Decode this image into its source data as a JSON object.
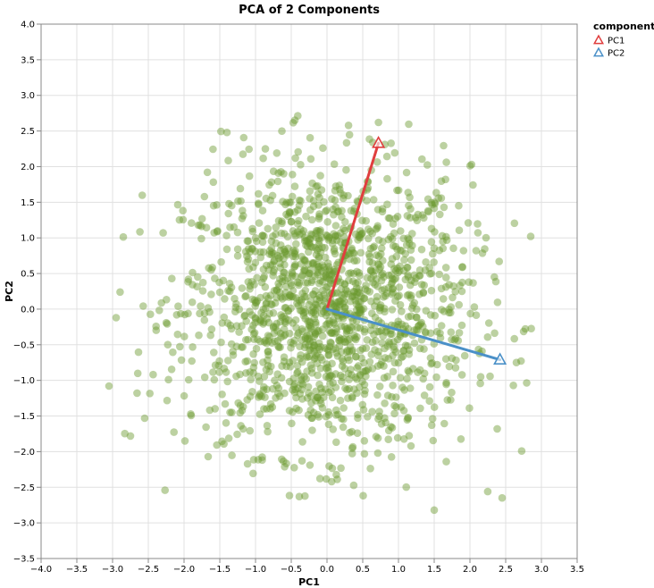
{
  "chart_data": {
    "type": "scatter",
    "title": "PCA of 2 Components",
    "xlabel": "PC1",
    "ylabel": "PC2",
    "xlim": [
      -4.0,
      3.5
    ],
    "ylim": [
      -3.5,
      4.0
    ],
    "x_ticks": [
      "−4.0",
      "−3.5",
      "−3.0",
      "−2.5",
      "−2.0",
      "−1.5",
      "−1.0",
      "−0.5",
      "0.0",
      "0.5",
      "1.0",
      "1.5",
      "2.0",
      "2.5",
      "3.0",
      "3.5"
    ],
    "y_ticks": [
      "−3.5",
      "−3.0",
      "−2.5",
      "−2.0",
      "−1.5",
      "−1.0",
      "−0.5",
      "0.0",
      "0.5",
      "1.0",
      "1.5",
      "2.0",
      "2.5",
      "3.0",
      "3.5",
      "4.0"
    ],
    "grid": true,
    "points": {
      "color": "#6b9a2e",
      "count": 1600,
      "distribution": "approximately bivariate normal, mean (0,0), sd ~1 in each dimension",
      "notable": [
        {
          "x": -3.05,
          "y": -1.08
        },
        {
          "x": -2.95,
          "y": -0.12
        },
        {
          "x": -2.75,
          "y": -1.78
        },
        {
          "x": 2.85,
          "y": 1.02
        },
        {
          "x": 2.65,
          "y": -0.75
        },
        {
          "x": 2.45,
          "y": -2.65
        },
        {
          "x": 1.5,
          "y": -2.82
        },
        {
          "x": 0.72,
          "y": 2.62
        },
        {
          "x": -0.45,
          "y": 2.65
        },
        {
          "x": -1.4,
          "y": 2.48
        }
      ]
    },
    "legend": {
      "title": "component",
      "placement": "top-right",
      "items": [
        {
          "label": "PC1",
          "color": "#e03e3e",
          "vector": [
            0.72,
            2.33
          ]
        },
        {
          "label": "PC2",
          "color": "#4a90c8",
          "vector": [
            2.42,
            -0.71
          ]
        }
      ]
    }
  }
}
